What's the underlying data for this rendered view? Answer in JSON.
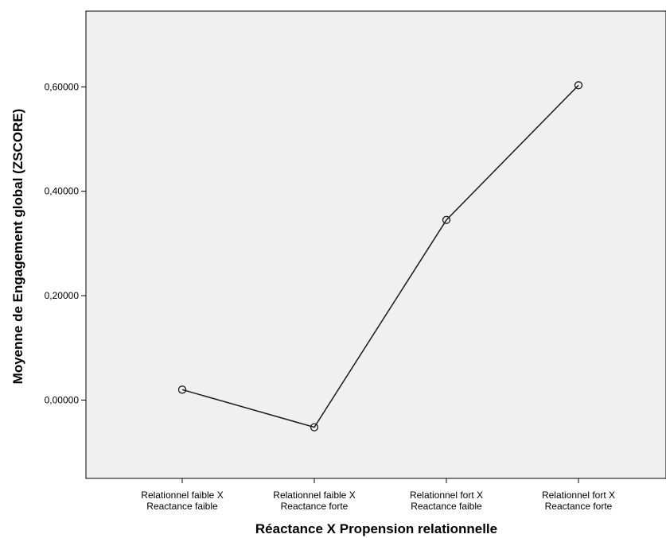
{
  "chart_data": {
    "type": "line",
    "title": "",
    "xlabel": "Réactance X Propension relationnelle",
    "ylabel": "Moyenne de Engagement global (ZSCORE)",
    "categories": [
      [
        "Relationnel faible X",
        "Reactance faible"
      ],
      [
        "Relationnel faible X",
        "Reactance forte"
      ],
      [
        "Relationnel fort X",
        "Reactance faible"
      ],
      [
        "Relationnel fort X",
        "Reactance forte"
      ]
    ],
    "series": [
      {
        "values": [
          0.02,
          -0.052,
          0.345,
          0.603
        ],
        "color": "#1a1a1a",
        "marker": "circle"
      }
    ],
    "ylim": [
      -0.15,
      0.745
    ],
    "yticks": [
      0.0,
      0.2,
      0.4,
      0.6
    ],
    "ytick_labels": [
      "0,00000",
      "0,20000",
      "0,40000",
      "0,60000"
    ],
    "grid": false,
    "plot_background": "#f0f0f0"
  }
}
